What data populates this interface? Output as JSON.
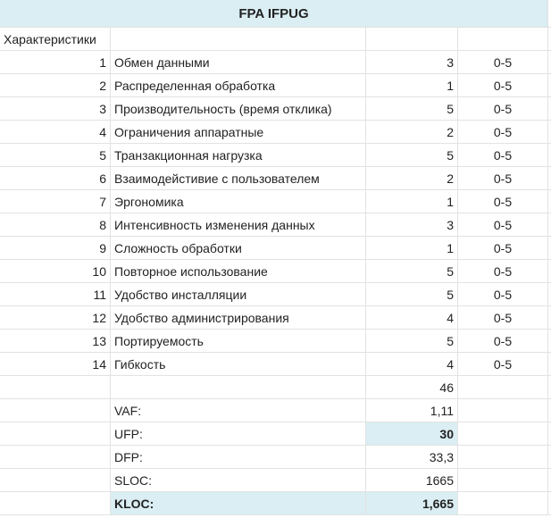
{
  "sheet": {
    "title": "FPA IFPUG",
    "header_label": "Характеристики",
    "characteristics": [
      {
        "num": "1",
        "name": "Обмен данными",
        "value": "3",
        "range": "0-5"
      },
      {
        "num": "2",
        "name": "Распределенная обработка",
        "value": "1",
        "range": "0-5"
      },
      {
        "num": "3",
        "name": "Производительность (время отклика)",
        "value": "5",
        "range": "0-5"
      },
      {
        "num": "4",
        "name": "Ограничения аппаратные",
        "value": "2",
        "range": "0-5"
      },
      {
        "num": "5",
        "name": "Транзакционная нагрузка",
        "value": "5",
        "range": "0-5"
      },
      {
        "num": "6",
        "name": "Взаимодейстивие с пользователем",
        "value": "2",
        "range": "0-5"
      },
      {
        "num": "7",
        "name": "Эргономика",
        "value": "1",
        "range": "0-5"
      },
      {
        "num": "8",
        "name": "Интенсивность изменения данных",
        "value": "3",
        "range": "0-5"
      },
      {
        "num": "9",
        "name": "Сложность обработки",
        "value": "1",
        "range": "0-5"
      },
      {
        "num": "10",
        "name": "Повторное использование",
        "value": "5",
        "range": "0-5"
      },
      {
        "num": "11",
        "name": "Удобство инсталляции",
        "value": "5",
        "range": "0-5"
      },
      {
        "num": "12",
        "name": "Удобство администрирования",
        "value": "4",
        "range": "0-5"
      },
      {
        "num": "13",
        "name": "Портируемость",
        "value": "5",
        "range": "0-5"
      },
      {
        "num": "14",
        "name": "Гибкость",
        "value": "4",
        "range": "0-5"
      }
    ],
    "total": "46",
    "summary": [
      {
        "label": "VAF:",
        "value": "1,11",
        "highlight": false,
        "bold": false
      },
      {
        "label": "UFP:",
        "value": "30",
        "highlight": "value",
        "bold": "value"
      },
      {
        "label": "DFP:",
        "value": "33,3",
        "highlight": false,
        "bold": false
      },
      {
        "label": "SLOC:",
        "value": "1665",
        "highlight": false,
        "bold": false
      },
      {
        "label": "KLOC:",
        "value": "1,665",
        "highlight": "both",
        "bold": "both"
      }
    ]
  }
}
